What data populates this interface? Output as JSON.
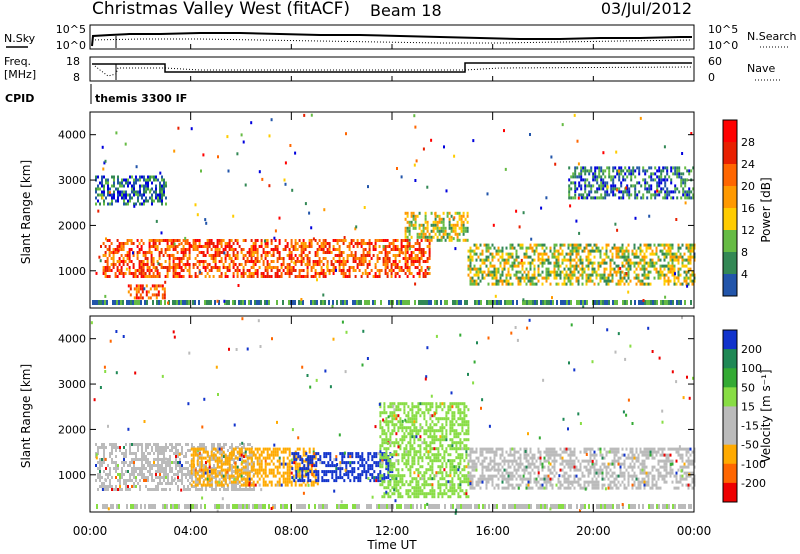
{
  "header": {
    "title": "Christmas Valley West (fitACF)",
    "beam": "Beam 18",
    "date": "03/Jul/2012"
  },
  "summary": {
    "nsky_label": "N.Sky",
    "nsky_ticks": [
      "10^5",
      "10^0"
    ],
    "nsearch_label": "N.Search",
    "nsearch_ticks": [
      "10^5",
      "10^0"
    ],
    "freq_label": "Freq.",
    "freq_unit": "[MHz]",
    "freq_ticks": [
      "18",
      "8"
    ],
    "nave_label": "Nave",
    "nave_ticks": [
      "60",
      "0"
    ],
    "cpid_label": "CPID",
    "cpid_value": "themis 3300 IF"
  },
  "panels": {
    "power": {
      "ylabel": "Slant Range [km]",
      "cbar_label": "Power [dB]",
      "cbar_ticks": [
        "28",
        "24",
        "20",
        "16",
        "12",
        "8",
        "4"
      ]
    },
    "velocity": {
      "ylabel": "Slant Range [km]",
      "cbar_label": "Velocity [m s⁻¹]",
      "cbar_ticks": [
        "200",
        "100",
        "50",
        "15",
        "-15",
        "-50",
        "-100",
        "-200"
      ]
    },
    "xlabel": "Time UT"
  },
  "colors": {
    "power_scale": [
      "#ff0000",
      "#e82000",
      "#ff6600",
      "#ff9900",
      "#ffcc00",
      "#66bb44",
      "#338855",
      "#2255aa",
      "#0000dd"
    ],
    "velocity_scale": [
      "#1133cc",
      "#1f8855",
      "#33aa33",
      "#88dd44",
      "#bbbbbb",
      "#bbbbbb",
      "#ffaa00",
      "#ff6600",
      "#ee0000"
    ]
  },
  "chart_data": [
    {
      "type": "heatmap",
      "title": "Power",
      "xlabel": "Time UT",
      "ylabel": "Slant Range [km]",
      "x_ticks": [
        "00:00",
        "04:00",
        "08:00",
        "12:00",
        "16:00",
        "20:00",
        "00:00"
      ],
      "y_ticks": [
        1000,
        2000,
        3000,
        4000
      ],
      "xlim": [
        0,
        24
      ],
      "ylim": [
        180,
        4500
      ],
      "colorbar": {
        "label": "Power [dB]",
        "ticks": [
          4,
          8,
          12,
          16,
          20,
          24,
          28
        ]
      },
      "regions": [
        {
          "t": [
            0.5,
            13.5
          ],
          "range": [
            850,
            1700
          ],
          "level": "high"
        },
        {
          "t": [
            0.2,
            3.0
          ],
          "range": [
            2450,
            3100
          ],
          "level": "low"
        },
        {
          "t": [
            12.5,
            15.0
          ],
          "range": [
            1700,
            2300
          ],
          "level": "mid"
        },
        {
          "t": [
            15.0,
            24.0
          ],
          "range": [
            700,
            1600
          ],
          "level": "mid"
        },
        {
          "t": [
            19.0,
            24.0
          ],
          "range": [
            2600,
            3300
          ],
          "level": "low"
        },
        {
          "t": [
            1.5,
            3.0
          ],
          "range": [
            400,
            700
          ],
          "level": "high"
        }
      ]
    },
    {
      "type": "heatmap",
      "title": "Velocity",
      "xlabel": "Time UT",
      "ylabel": "Slant Range [km]",
      "x_ticks": [
        "00:00",
        "04:00",
        "08:00",
        "12:00",
        "16:00",
        "20:00",
        "00:00"
      ],
      "y_ticks": [
        1000,
        2000,
        3000,
        4000
      ],
      "xlim": [
        0,
        24
      ],
      "ylim": [
        180,
        4500
      ],
      "colorbar": {
        "label": "Velocity [m s⁻¹]",
        "ticks": [
          -200,
          -100,
          -50,
          -15,
          15,
          50,
          100,
          200
        ]
      },
      "regions": [
        {
          "t": [
            0.2,
            6.5
          ],
          "range": [
            700,
            1700
          ],
          "velocity": "grey"
        },
        {
          "t": [
            4.0,
            9.0
          ],
          "range": [
            800,
            1600
          ],
          "velocity": "orange"
        },
        {
          "t": [
            8.0,
            12.0
          ],
          "range": [
            900,
            1500
          ],
          "velocity": "blue"
        },
        {
          "t": [
            11.5,
            15.0
          ],
          "range": [
            500,
            2600
          ],
          "velocity": "green"
        },
        {
          "t": [
            15.0,
            24.0
          ],
          "range": [
            700,
            1600
          ],
          "velocity": "grey"
        }
      ]
    }
  ]
}
